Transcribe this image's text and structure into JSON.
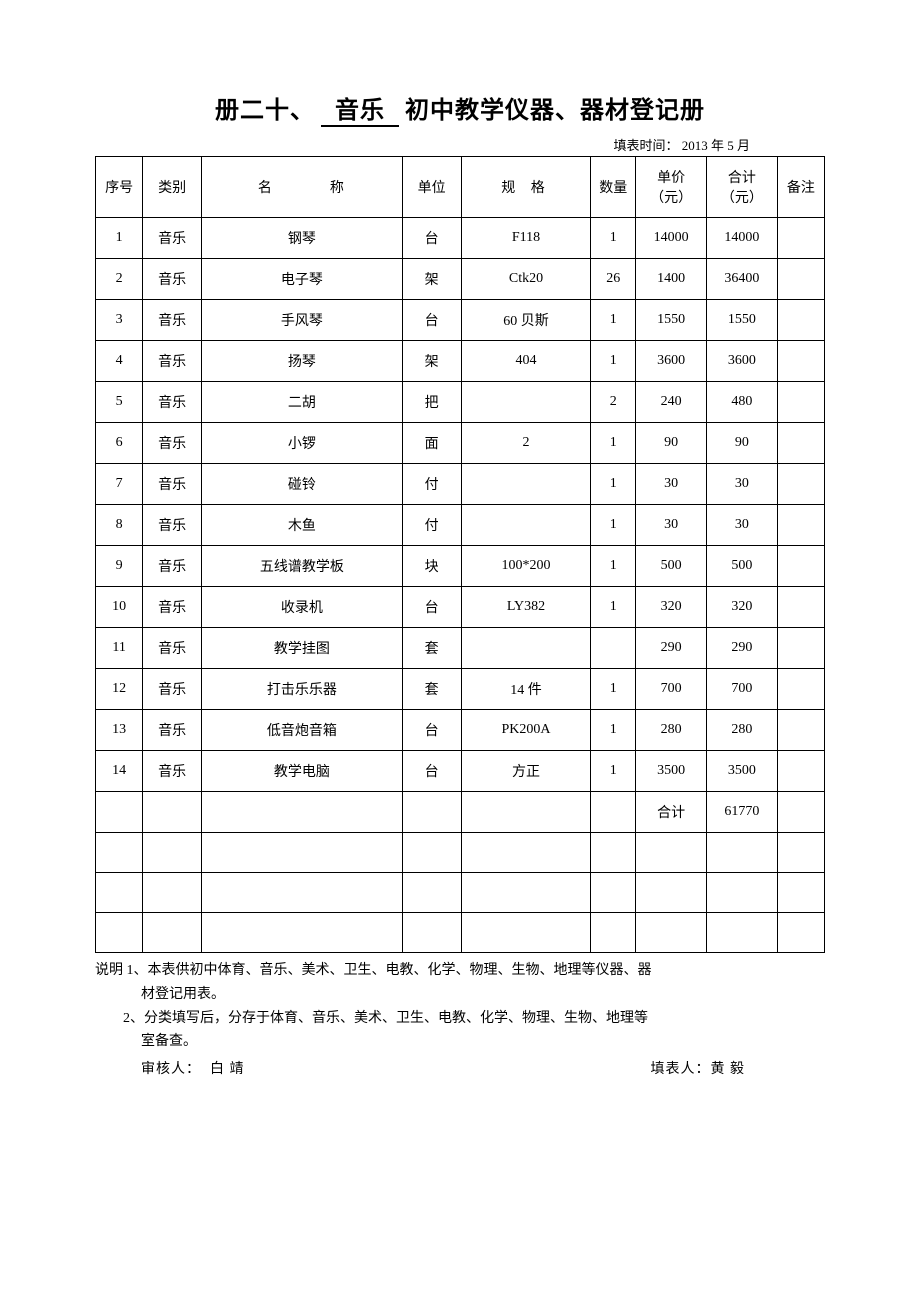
{
  "title": {
    "prefix": "册二十、",
    "underlined": "音乐",
    "suffix": "初中教学仪器、器材登记册"
  },
  "date_label": "填表时间：",
  "date_value": "2013 年 5 月",
  "headers": {
    "seq": "序号",
    "category": "类别",
    "name": "名　称",
    "unit": "单位",
    "spec": "规 格",
    "qty": "数量",
    "price": "单价（元）",
    "total": "合计（元）",
    "note": "备注"
  },
  "rows": [
    {
      "seq": "1",
      "cat": "音乐",
      "name": "钢琴",
      "unit": "台",
      "spec": "F118",
      "qty": "1",
      "price": "14000",
      "total": "14000",
      "note": ""
    },
    {
      "seq": "2",
      "cat": "音乐",
      "name": "电子琴",
      "unit": "架",
      "spec": "Ctk20",
      "qty": "26",
      "price": "1400",
      "total": "36400",
      "note": ""
    },
    {
      "seq": "3",
      "cat": "音乐",
      "name": "手风琴",
      "unit": "台",
      "spec": "60 贝斯",
      "qty": "1",
      "price": "1550",
      "total": "1550",
      "note": ""
    },
    {
      "seq": "4",
      "cat": "音乐",
      "name": "扬琴",
      "unit": "架",
      "spec": "404",
      "qty": "1",
      "price": "3600",
      "total": "3600",
      "note": ""
    },
    {
      "seq": "5",
      "cat": "音乐",
      "name": "二胡",
      "unit": "把",
      "spec": "",
      "qty": "2",
      "price": "240",
      "total": "480",
      "note": ""
    },
    {
      "seq": "6",
      "cat": "音乐",
      "name": "小锣",
      "unit": "面",
      "spec": "2",
      "qty": "1",
      "price": "90",
      "total": "90",
      "note": ""
    },
    {
      "seq": "7",
      "cat": "音乐",
      "name": "碰铃",
      "unit": "付",
      "spec": "",
      "qty": "1",
      "price": "30",
      "total": "30",
      "note": ""
    },
    {
      "seq": "8",
      "cat": "音乐",
      "name": "木鱼",
      "unit": "付",
      "spec": "",
      "qty": "1",
      "price": "30",
      "total": "30",
      "note": ""
    },
    {
      "seq": "9",
      "cat": "音乐",
      "name": "五线谱教学板",
      "unit": "块",
      "spec": "100*200",
      "qty": "1",
      "price": "500",
      "total": "500",
      "note": ""
    },
    {
      "seq": "10",
      "cat": "音乐",
      "name": "收录机",
      "unit": "台",
      "spec": "LY382",
      "qty": "1",
      "price": "320",
      "total": "320",
      "note": ""
    },
    {
      "seq": "11",
      "cat": "音乐",
      "name": "教学挂图",
      "unit": "套",
      "spec": "",
      "qty": "",
      "price": "290",
      "total": "290",
      "note": ""
    },
    {
      "seq": "12",
      "cat": "音乐",
      "name": "打击乐乐器",
      "unit": "套",
      "spec": "14 件",
      "qty": "1",
      "price": "700",
      "total": "700",
      "note": ""
    },
    {
      "seq": "13",
      "cat": "音乐",
      "name": "低音炮音箱",
      "unit": "台",
      "spec": "PK200A",
      "qty": "1",
      "price": "280",
      "total": "280",
      "note": ""
    },
    {
      "seq": "14",
      "cat": "音乐",
      "name": "教学电脑",
      "unit": "台",
      "spec": "方正",
      "qty": "1",
      "price": "3500",
      "total": "3500",
      "note": ""
    }
  ],
  "summary": {
    "label": "合计",
    "total": "61770"
  },
  "empty_rows": 3,
  "notes": {
    "line1": "说明 1、本表供初中体育、音乐、美术、卫生、电教、化学、物理、生物、地理等仪器、器",
    "line1b": "材登记用表。",
    "line2": "2、分类填写后，分存于体育、音乐、美术、卫生、电教、化学、物理、生物、地理等",
    "line2b": "室备查。"
  },
  "signatures": {
    "reviewer_label": "审核人：",
    "reviewer_name": "白 靖",
    "filler_label": "填表人：",
    "filler_name": "黄 毅"
  }
}
